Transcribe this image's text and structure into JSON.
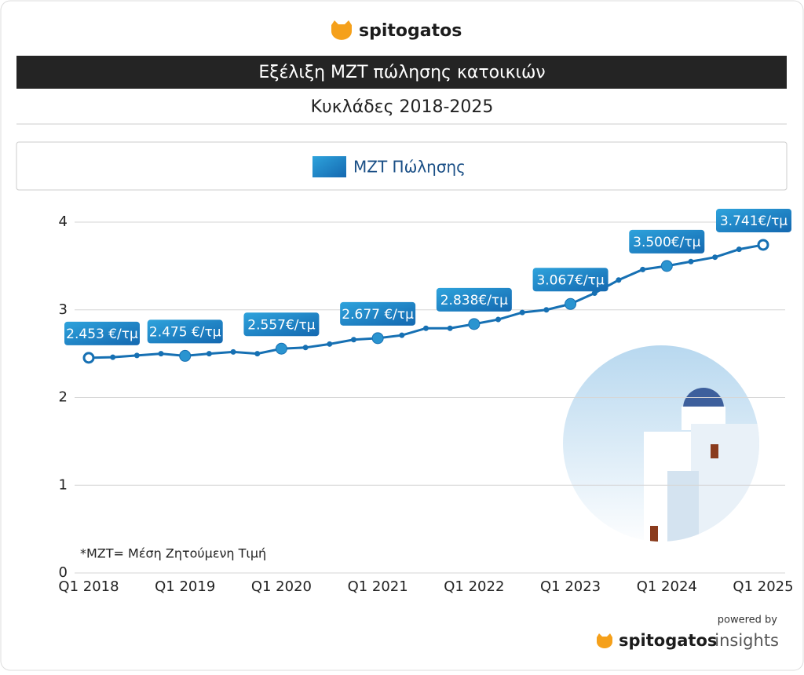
{
  "brand": "spitogatos",
  "footer": {
    "powered": "powered by",
    "brand": "spitogatos",
    "product": "insights"
  },
  "chart_data": {
    "type": "line",
    "title": "Εξέλιξη ΜΖΤ πώλησης κατοικιών",
    "subtitle": "Κυκλάδες 2018-2025",
    "note": "*ΜΖΤ= Μέση Ζητούμενη Τιμή",
    "categories": [
      "Q1 2018",
      null,
      null,
      null,
      "Q1 2019",
      null,
      null,
      null,
      "Q1 2020",
      null,
      null,
      null,
      "Q1 2021",
      null,
      null,
      null,
      "Q1 2022",
      null,
      null,
      null,
      "Q1 2023",
      null,
      null,
      null,
      "Q1 2024",
      null,
      null,
      null,
      "Q1 2025"
    ],
    "series": [
      {
        "name": "ΜΖΤ Πώλησης",
        "color": "#1670b3",
        "values": [
          2.453,
          2.46,
          2.48,
          2.5,
          2.475,
          2.5,
          2.52,
          2.5,
          2.557,
          2.57,
          2.61,
          2.66,
          2.677,
          2.71,
          2.79,
          2.79,
          2.838,
          2.89,
          2.97,
          3.0,
          3.067,
          3.19,
          3.34,
          3.46,
          3.5,
          3.55,
          3.6,
          3.69,
          3.741
        ],
        "value_labels": [
          "2.453 €/τμ",
          null,
          null,
          null,
          "2.475 €/τμ",
          null,
          null,
          null,
          "2.557€/τμ",
          null,
          null,
          null,
          "2.677 €/τμ",
          null,
          null,
          null,
          "2.838€/τμ",
          null,
          null,
          null,
          "3.067€/τμ",
          null,
          null,
          null,
          "3.500€/τμ",
          null,
          null,
          null,
          "3.741€/τμ"
        ]
      }
    ],
    "ylim": [
      0,
      4
    ],
    "yticks": [
      0,
      1,
      2,
      3,
      4
    ],
    "grid": true
  }
}
